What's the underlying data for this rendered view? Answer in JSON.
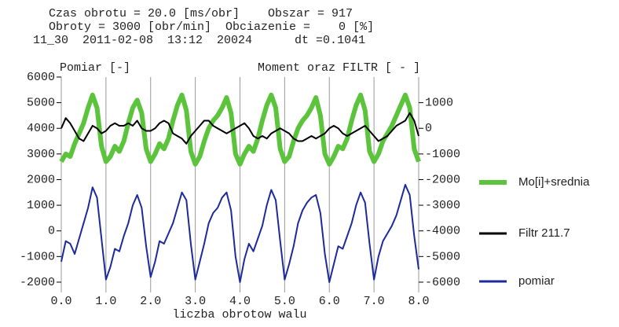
{
  "chart_data": {
    "type": "line",
    "header_lines": [
      "Czas obrotu = 20.0 [ms/obr]    Obszar = 917",
      "Obroty = 3000 [obr/min]  Obciazenie =    0 [%]",
      "11_30  2011-02-08  13:12  20024      dt =0.1041"
    ],
    "ylabel": "Pomiar [-]",
    "y2label": "Moment oraz FILTR [ - ]",
    "xlabel": "liczba obrotow walu",
    "x": [
      0.0,
      0.1,
      0.2,
      0.3,
      0.4,
      0.5,
      0.6,
      0.7,
      0.8,
      0.9,
      1.0,
      1.1,
      1.2,
      1.3,
      1.4,
      1.5,
      1.6,
      1.7,
      1.8,
      1.9,
      2.0,
      2.1,
      2.2,
      2.3,
      2.4,
      2.5,
      2.6,
      2.7,
      2.8,
      2.9,
      3.0,
      3.1,
      3.2,
      3.3,
      3.4,
      3.5,
      3.6,
      3.7,
      3.8,
      3.9,
      4.0,
      4.1,
      4.2,
      4.3,
      4.4,
      4.5,
      4.6,
      4.7,
      4.8,
      4.9,
      5.0,
      5.1,
      5.2,
      5.3,
      5.4,
      5.5,
      5.6,
      5.7,
      5.8,
      5.9,
      6.0,
      6.1,
      6.2,
      6.3,
      6.4,
      6.5,
      6.6,
      6.7,
      6.8,
      6.9,
      7.0,
      7.1,
      7.2,
      7.3,
      7.4,
      7.5,
      7.6,
      7.7,
      7.8,
      7.9,
      8.0
    ],
    "series": [
      {
        "name": "Mo[i]+srednia",
        "color": "#5cc43c",
        "axis": "y2",
        "values": [
          -1300,
          -1000,
          -1100,
          -600,
          -200,
          200,
          800,
          1300,
          800,
          -700,
          -1300,
          -1100,
          -700,
          -900,
          -500,
          200,
          800,
          1100,
          600,
          -800,
          -1300,
          -1000,
          -600,
          -800,
          -400,
          300,
          900,
          1300,
          700,
          -900,
          -1400,
          -1100,
          -500,
          0,
          300,
          500,
          800,
          1200,
          600,
          -1000,
          -1400,
          -1000,
          -700,
          -900,
          -400,
          300,
          900,
          1300,
          800,
          -800,
          -1300,
          -1100,
          -500,
          0,
          300,
          500,
          800,
          1200,
          500,
          -1000,
          -1400,
          -1100,
          -700,
          -800,
          -400,
          300,
          900,
          1300,
          700,
          -900,
          -1300,
          -1000,
          -500,
          -200,
          100,
          500,
          900,
          1300,
          800,
          -800,
          -1300
        ]
      },
      {
        "name": "Filtr 211.7",
        "color": "#000000",
        "axis": "y2",
        "values": [
          0,
          400,
          200,
          -100,
          -400,
          -500,
          -200,
          100,
          0,
          -200,
          -100,
          100,
          200,
          100,
          100,
          200,
          100,
          300,
          0,
          -100,
          -100,
          0,
          200,
          300,
          200,
          -200,
          -300,
          -400,
          -600,
          -300,
          -100,
          100,
          300,
          300,
          100,
          0,
          -100,
          -200,
          -100,
          0,
          100,
          200,
          0,
          -300,
          -400,
          -300,
          -400,
          -200,
          -100,
          0,
          -100,
          -200,
          -400,
          -500,
          -500,
          -400,
          -300,
          -400,
          -300,
          -200,
          0,
          100,
          0,
          -200,
          -300,
          -200,
          -100,
          0,
          100,
          -100,
          -300,
          -500,
          -400,
          -300,
          -100,
          100,
          200,
          300,
          600,
          300,
          -300
        ]
      },
      {
        "name": "pomiar",
        "color": "#1c2a9c",
        "values": [
          -1200,
          -400,
          -500,
          -900,
          -300,
          300,
          900,
          1700,
          1300,
          -300,
          -1900,
          -1400,
          -700,
          -800,
          -200,
          300,
          1000,
          1400,
          900,
          -600,
          -1800,
          -1200,
          -400,
          -500,
          -100,
          300,
          900,
          1500,
          1200,
          -500,
          -1900,
          -1200,
          -500,
          300,
          700,
          900,
          1300,
          1500,
          800,
          -1000,
          -2000,
          -1100,
          -500,
          -800,
          -300,
          200,
          1000,
          1600,
          1200,
          -400,
          -1900,
          -1300,
          -600,
          300,
          800,
          1100,
          1300,
          1400,
          700,
          -900,
          -2000,
          -1300,
          -600,
          -700,
          -200,
          300,
          1000,
          1500,
          1100,
          -500,
          -1900,
          -1000,
          -400,
          -100,
          200,
          600,
          1200,
          1800,
          1400,
          -200,
          -1500
        ]
      }
    ],
    "xlim": [
      0,
      8
    ],
    "xticks": [
      {
        "value": 0,
        "label": "0.0"
      },
      {
        "value": 1,
        "label": "1.0"
      },
      {
        "value": 2,
        "label": "2.0"
      },
      {
        "value": 3,
        "label": "3.0"
      },
      {
        "value": 4,
        "label": "4.0"
      },
      {
        "value": 5,
        "label": "5.0"
      },
      {
        "value": 6,
        "label": "6.0"
      },
      {
        "value": 7,
        "label": "7.0"
      },
      {
        "value": 8,
        "label": "8.0"
      }
    ],
    "ylim": [
      -2400,
      6000
    ],
    "yticks": [
      6000,
      5000,
      4000,
      3000,
      2000,
      1000,
      0,
      -1000,
      -2000
    ],
    "y2lim": [
      -6400,
      2000
    ],
    "y2ticks": [
      1000,
      0,
      -1000,
      -2000,
      -3000,
      -4000,
      -5000,
      -6000
    ],
    "grid": true,
    "legend": "right"
  }
}
